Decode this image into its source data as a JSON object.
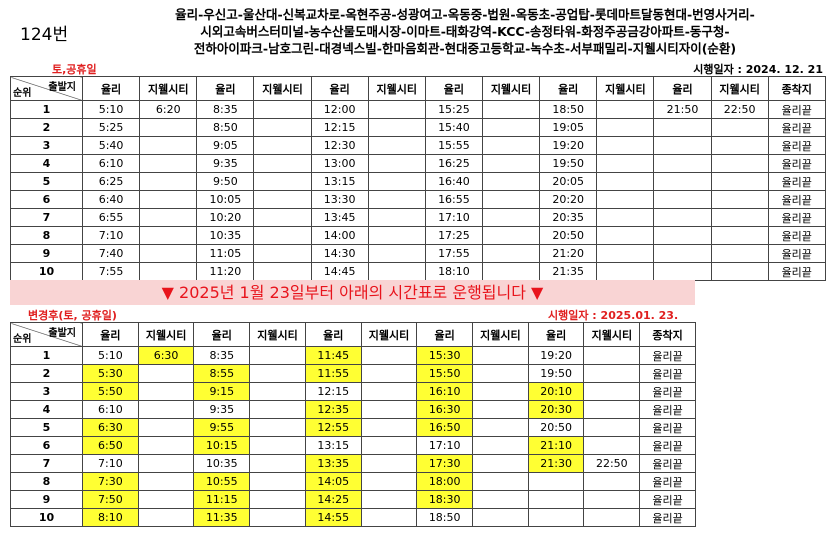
{
  "header": {
    "route_number": "124번",
    "route": [
      "율리-우신고-울산대-신복교차로-옥현주공-성광여고-옥동중-법원-옥동초-공업탑-롯데마트달동현대-번영사거리-",
      "시외고속버스터미널-농수산물도매시장-이마트-태화강역-KCC-송정타워-화정주공금강아파트-동구청-",
      "전하아이파크-남호그린-대경넥스빌-한마음회관-현대중고등학교-녹수초-서부패밀리-지웰시티자이(순환)"
    ]
  },
  "tables": [
    {
      "label": "토,공휴일",
      "effective_date": "시행일자 : 2024. 12. 21",
      "corner": {
        "top": "출발지",
        "bottom": "순위"
      },
      "columns": [
        "율리",
        "지웰시티",
        "율리",
        "지웰시티",
        "율리",
        "지웰시티",
        "율리",
        "지웰시티",
        "율리",
        "지웰시티",
        "율리",
        "지웰시티",
        "종착지"
      ],
      "rows": [
        [
          1,
          "5:10",
          "6:20",
          "8:35",
          null,
          "12:00",
          null,
          "15:25",
          null,
          "18:50",
          null,
          "21:50",
          "22:50",
          "율리끝"
        ],
        [
          2,
          "5:25",
          null,
          "8:50",
          null,
          "12:15",
          null,
          "15:40",
          null,
          "19:05",
          null,
          null,
          null,
          "율리끝"
        ],
        [
          3,
          "5:40",
          null,
          "9:05",
          null,
          "12:30",
          null,
          "15:55",
          null,
          "19:20",
          null,
          null,
          null,
          "율리끝"
        ],
        [
          4,
          "6:10",
          null,
          "9:35",
          null,
          "13:00",
          null,
          "16:25",
          null,
          "19:50",
          null,
          null,
          null,
          "율리끝"
        ],
        [
          5,
          "6:25",
          null,
          "9:50",
          null,
          "13:15",
          null,
          "16:40",
          null,
          "20:05",
          null,
          null,
          null,
          "율리끝"
        ],
        [
          6,
          "6:40",
          null,
          "10:05",
          null,
          "13:30",
          null,
          "16:55",
          null,
          "20:20",
          null,
          null,
          null,
          "율리끝"
        ],
        [
          7,
          "6:55",
          null,
          "10:20",
          null,
          "13:45",
          null,
          "17:10",
          null,
          "20:35",
          null,
          null,
          null,
          "율리끝"
        ],
        [
          8,
          "7:10",
          null,
          "10:35",
          null,
          "14:00",
          null,
          "17:25",
          null,
          "20:50",
          null,
          null,
          null,
          "율리끝"
        ],
        [
          9,
          "7:40",
          null,
          "11:05",
          null,
          "14:30",
          null,
          "17:55",
          null,
          "21:20",
          null,
          null,
          null,
          "율리끝"
        ],
        [
          10,
          "7:55",
          null,
          "11:20",
          null,
          "14:45",
          null,
          "18:10",
          null,
          "21:35",
          null,
          null,
          null,
          "율리끝"
        ]
      ]
    },
    {
      "label": "변경후(토, 공휴일)",
      "effective_date": "시행일자 : 2025.01. 23.",
      "corner": {
        "top": "출발지",
        "bottom": "순위"
      },
      "columns": [
        "율리",
        "지웰시티",
        "율리",
        "지웰시티",
        "율리",
        "지웰시티",
        "율리",
        "지웰시티",
        "율리",
        "지웰시티",
        "종착지"
      ],
      "rows": [
        [
          1,
          "5:10",
          "6:30",
          "8:35",
          null,
          "11:45",
          null,
          "15:30",
          null,
          "19:20",
          null,
          "율리끝"
        ],
        [
          2,
          "5:30",
          null,
          "8:55",
          null,
          "11:55",
          null,
          "15:50",
          null,
          "19:50",
          null,
          "율리끝"
        ],
        [
          3,
          "5:50",
          null,
          "9:15",
          null,
          "12:15",
          null,
          "16:10",
          null,
          "20:10",
          null,
          "율리끝"
        ],
        [
          4,
          "6:10",
          null,
          "9:35",
          null,
          "12:35",
          null,
          "16:30",
          null,
          "20:30",
          null,
          "율리끝"
        ],
        [
          5,
          "6:30",
          null,
          "9:55",
          null,
          "12:55",
          null,
          "16:50",
          null,
          "20:50",
          null,
          "율리끝"
        ],
        [
          6,
          "6:50",
          null,
          "10:15",
          null,
          "13:15",
          null,
          "17:10",
          null,
          "21:10",
          null,
          "율리끝"
        ],
        [
          7,
          "7:10",
          null,
          "10:35",
          null,
          "13:35",
          null,
          "17:30",
          null,
          "21:30",
          "22:50",
          "율리끝"
        ],
        [
          8,
          "7:30",
          null,
          "10:55",
          null,
          "14:05",
          null,
          "18:00",
          null,
          null,
          null,
          "율리끝"
        ],
        [
          9,
          "7:50",
          null,
          "11:15",
          null,
          "14:25",
          null,
          "18:30",
          null,
          null,
          null,
          "율리끝"
        ],
        [
          10,
          "8:10",
          null,
          "11:35",
          null,
          "14:55",
          null,
          "18:50",
          null,
          null,
          null,
          "율리끝"
        ]
      ]
    }
  ],
  "notice": "▼ 2025년 1월 23일부터 아래의 시간표로 운행됩니다 ▼"
}
